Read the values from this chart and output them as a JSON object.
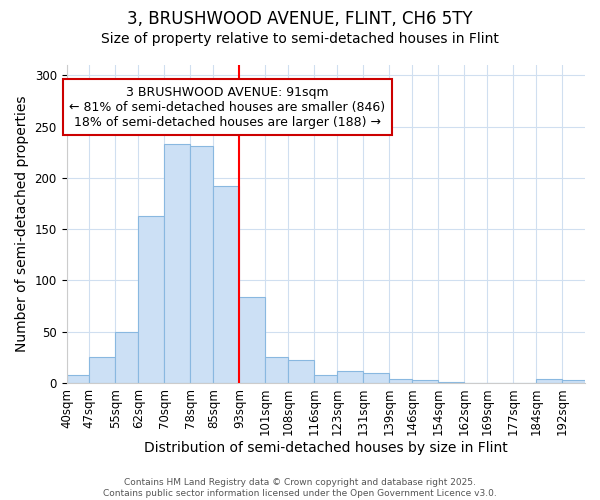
{
  "title": "3, BRUSHWOOD AVENUE, FLINT, CH6 5TY",
  "subtitle": "Size of property relative to semi-detached houses in Flint",
  "xlabel": "Distribution of semi-detached houses by size in Flint",
  "ylabel": "Number of semi-detached properties",
  "property_label": "3 BRUSHWOOD AVENUE: 91sqm",
  "pct_smaller": 81,
  "n_smaller": 846,
  "pct_larger": 18,
  "n_larger": 188,
  "bin_labels": [
    "40sqm",
    "47sqm",
    "55sqm",
    "62sqm",
    "70sqm",
    "78sqm",
    "85sqm",
    "93sqm",
    "101sqm",
    "108sqm",
    "116sqm",
    "123sqm",
    "131sqm",
    "139sqm",
    "146sqm",
    "154sqm",
    "162sqm",
    "169sqm",
    "177sqm",
    "184sqm",
    "192sqm"
  ],
  "bin_edges": [
    40,
    47,
    55,
    62,
    70,
    78,
    85,
    93,
    101,
    108,
    116,
    123,
    131,
    139,
    146,
    154,
    162,
    169,
    177,
    184,
    192,
    199
  ],
  "bar_heights": [
    8,
    25,
    50,
    163,
    233,
    231,
    192,
    84,
    25,
    22,
    8,
    12,
    10,
    4,
    3,
    1,
    0,
    0,
    0,
    4,
    3
  ],
  "bar_color": "#cce0f5",
  "bar_edge_color": "#89b8e0",
  "red_line_x": 93,
  "annotation_box_color": "#ffffff",
  "annotation_box_edge": "#cc0000",
  "title_fontsize": 12,
  "subtitle_fontsize": 10,
  "axis_label_fontsize": 10,
  "tick_fontsize": 8.5,
  "annotation_fontsize": 9,
  "ylim": [
    0,
    310
  ],
  "footer_text": "Contains HM Land Registry data © Crown copyright and database right 2025.\nContains public sector information licensed under the Open Government Licence v3.0.",
  "background_color": "#ffffff",
  "plot_bg_color": "#ffffff",
  "grid_color": "#d0dff0"
}
